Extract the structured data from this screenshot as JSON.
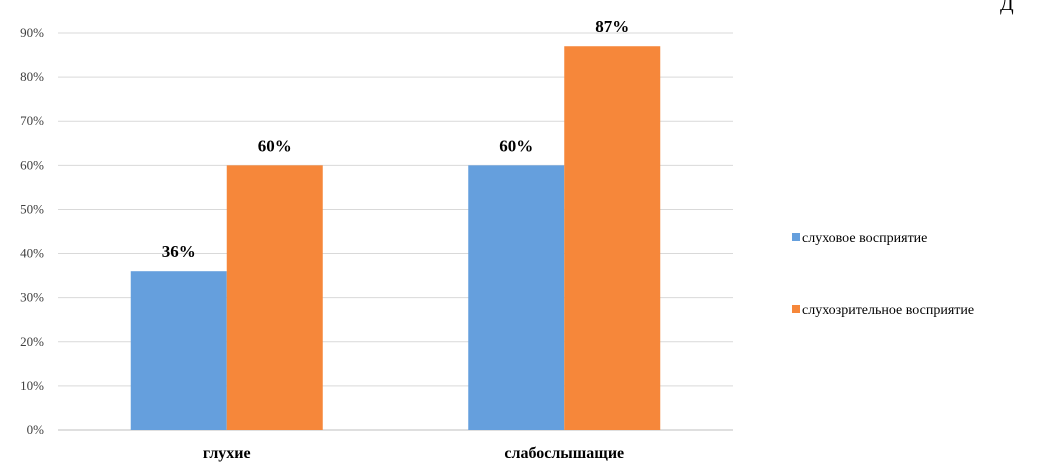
{
  "chart_data": {
    "type": "bar",
    "categories": [
      "глухие",
      "слабослышащие"
    ],
    "series": [
      {
        "name": "слуховое восприятие",
        "values": [
          36,
          60
        ],
        "color": "#659FDD"
      },
      {
        "name": "слухозрительное восприятие",
        "values": [
          60,
          87
        ],
        "color": "#F6873A"
      }
    ],
    "value_labels": [
      [
        "36%",
        "60%"
      ],
      [
        "60%",
        "87%"
      ]
    ],
    "y_tick_labels": [
      "0%",
      "10%",
      "20%",
      "30%",
      "40%",
      "50%",
      "60%",
      "70%",
      "80%",
      "90%"
    ],
    "ylim": [
      0,
      90
    ],
    "title": "",
    "xlabel": "",
    "ylabel": "",
    "grid": true,
    "legend_position": "right"
  },
  "corner_text": "Д"
}
